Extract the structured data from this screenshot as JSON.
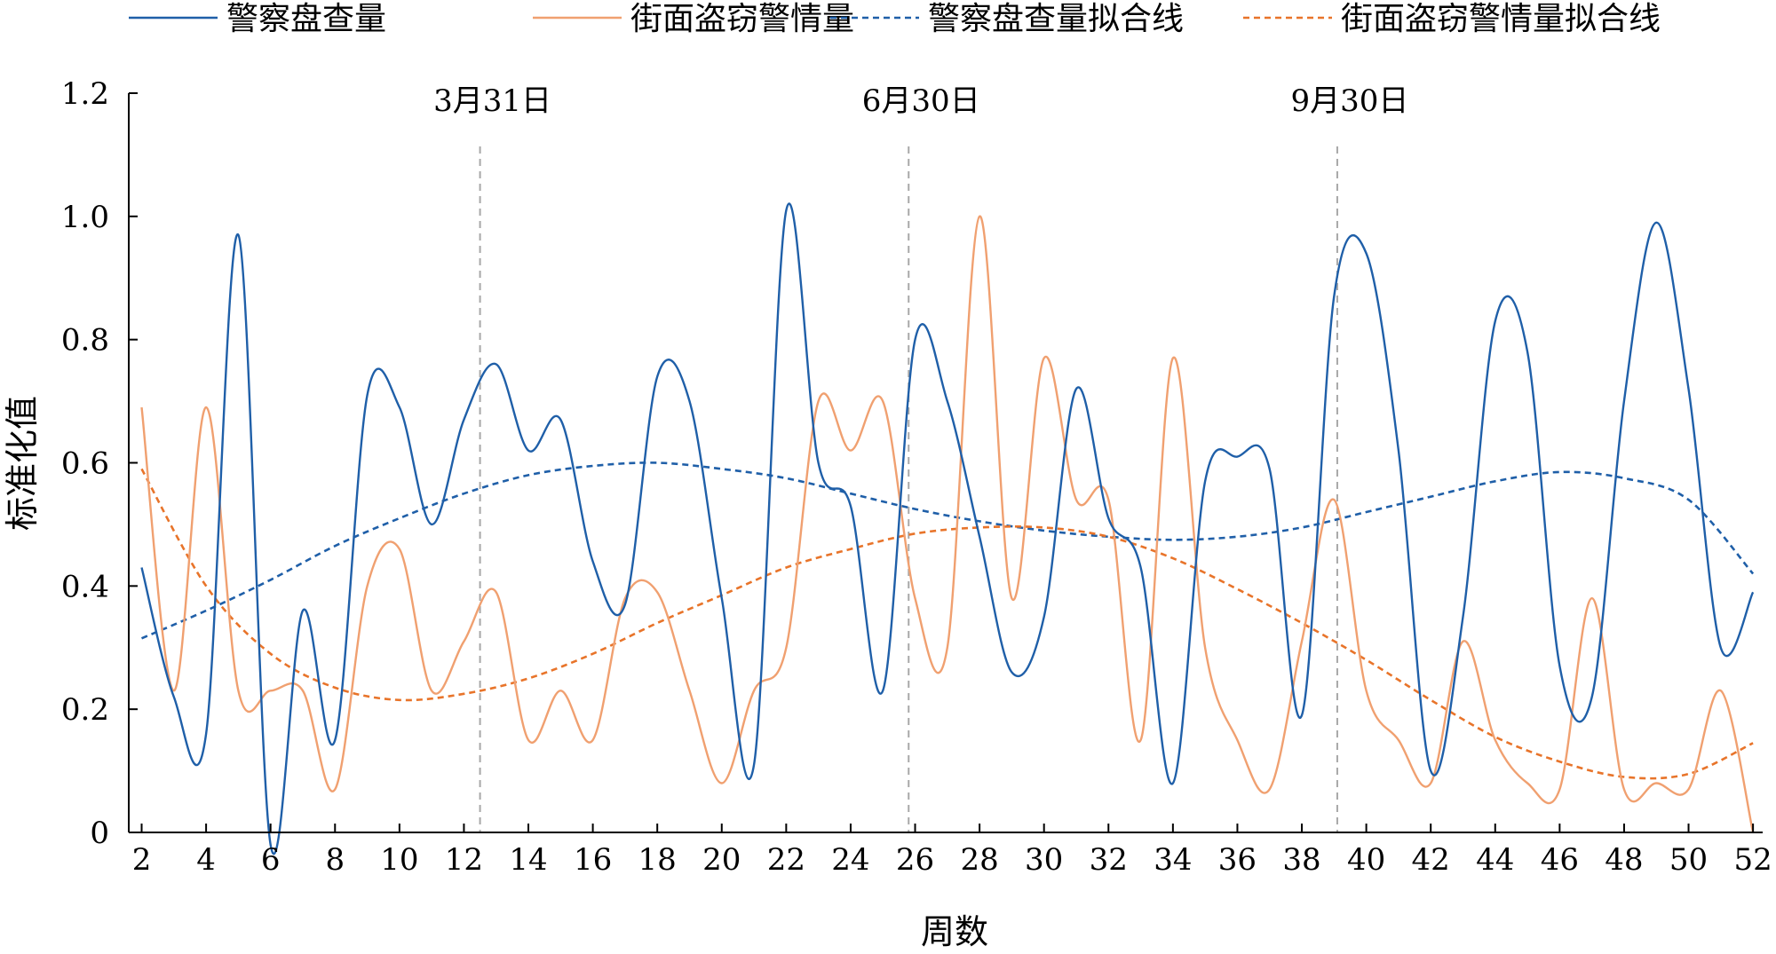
{
  "chart_data": {
    "type": "line",
    "title": "",
    "xlabel": "周数",
    "ylabel": "标准化值",
    "xlim": [
      1.6,
      52.3
    ],
    "ylim": [
      0,
      1.2
    ],
    "x_ticks": [
      2,
      4,
      6,
      8,
      10,
      12,
      14,
      16,
      18,
      20,
      22,
      24,
      26,
      28,
      30,
      32,
      34,
      36,
      38,
      40,
      42,
      44,
      46,
      48,
      50,
      52
    ],
    "y_ticks": [
      {
        "value": 0,
        "label": "0"
      },
      {
        "value": 0.2,
        "label": "0.2"
      },
      {
        "value": 0.4,
        "label": "0.4"
      },
      {
        "value": 0.6,
        "label": "0.6"
      },
      {
        "value": 0.8,
        "label": "0.8"
      },
      {
        "value": 1.0,
        "label": "1.0"
      },
      {
        "value": 1.2,
        "label": "1.2"
      }
    ],
    "legend_position": "top",
    "annotations": [
      {
        "x": 12.5,
        "label": "3月31日"
      },
      {
        "x": 25.8,
        "label": "6月30日"
      },
      {
        "x": 39.1,
        "label": "9月30日"
      }
    ],
    "series": [
      {
        "name": "警察盘查量",
        "color": "#1f5fa8",
        "style": "solid",
        "x": [
          2,
          3,
          4,
          5,
          6,
          7,
          8,
          9,
          10,
          11,
          12,
          13,
          14,
          15,
          16,
          17,
          18,
          19,
          20,
          21,
          22,
          23,
          24,
          25,
          26,
          27,
          28,
          29,
          30,
          31,
          32,
          33,
          34,
          35,
          36,
          37,
          38,
          39,
          40,
          41,
          42,
          43,
          44,
          45,
          46,
          47,
          48,
          49,
          50,
          51,
          52
        ],
        "values": [
          0.43,
          0.22,
          0.16,
          0.97,
          -0.02,
          0.36,
          0.15,
          0.71,
          0.69,
          0.5,
          0.67,
          0.76,
          0.62,
          0.67,
          0.44,
          0.37,
          0.74,
          0.7,
          0.38,
          0.11,
          1.01,
          0.6,
          0.53,
          0.23,
          0.8,
          0.7,
          0.48,
          0.26,
          0.35,
          0.72,
          0.51,
          0.43,
          0.08,
          0.57,
          0.61,
          0.59,
          0.19,
          0.87,
          0.94,
          0.62,
          0.1,
          0.35,
          0.83,
          0.78,
          0.27,
          0.22,
          0.7,
          0.99,
          0.72,
          0.3,
          0.39
        ]
      },
      {
        "name": "街面盗窃警情量",
        "color": "#f0a070",
        "style": "solid",
        "x": [
          2,
          3,
          4,
          5,
          6,
          7,
          8,
          9,
          10,
          11,
          12,
          13,
          14,
          15,
          16,
          17,
          18,
          19,
          20,
          21,
          22,
          23,
          24,
          25,
          26,
          27,
          28,
          29,
          30,
          31,
          32,
          33,
          34,
          35,
          36,
          37,
          38,
          39,
          40,
          41,
          42,
          43,
          44,
          45,
          46,
          47,
          48,
          49,
          50,
          51,
          52
        ],
        "values": [
          0.69,
          0.23,
          0.69,
          0.23,
          0.23,
          0.23,
          0.07,
          0.4,
          0.46,
          0.23,
          0.31,
          0.39,
          0.15,
          0.23,
          0.15,
          0.38,
          0.39,
          0.23,
          0.08,
          0.23,
          0.3,
          0.7,
          0.62,
          0.7,
          0.38,
          0.3,
          1.0,
          0.38,
          0.77,
          0.54,
          0.54,
          0.15,
          0.77,
          0.3,
          0.15,
          0.07,
          0.31,
          0.54,
          0.23,
          0.15,
          0.08,
          0.31,
          0.15,
          0.08,
          0.07,
          0.38,
          0.07,
          0.08,
          0.07,
          0.23,
          0.0
        ]
      },
      {
        "name": "警察盘查量拟合线",
        "color": "#1f5fa8",
        "style": "dashed",
        "x": [
          2,
          4,
          6,
          8,
          10,
          12,
          14,
          16,
          18,
          20,
          22,
          24,
          26,
          28,
          30,
          32,
          34,
          36,
          38,
          40,
          42,
          44,
          46,
          48,
          50,
          52
        ],
        "values": [
          0.315,
          0.36,
          0.41,
          0.465,
          0.51,
          0.55,
          0.58,
          0.595,
          0.6,
          0.59,
          0.575,
          0.55,
          0.525,
          0.505,
          0.49,
          0.48,
          0.475,
          0.48,
          0.495,
          0.52,
          0.545,
          0.57,
          0.585,
          0.575,
          0.54,
          0.42
        ]
      },
      {
        "name": "街面盗窃警情量拟合线",
        "color": "#e8742a",
        "style": "dashed",
        "x": [
          2,
          4,
          6,
          8,
          10,
          12,
          14,
          16,
          18,
          20,
          22,
          24,
          26,
          28,
          30,
          32,
          34,
          36,
          38,
          40,
          42,
          44,
          46,
          48,
          50,
          52
        ],
        "values": [
          0.59,
          0.4,
          0.29,
          0.235,
          0.215,
          0.225,
          0.25,
          0.29,
          0.34,
          0.385,
          0.43,
          0.46,
          0.485,
          0.495,
          0.495,
          0.48,
          0.445,
          0.395,
          0.34,
          0.28,
          0.215,
          0.155,
          0.115,
          0.09,
          0.095,
          0.145
        ]
      }
    ]
  }
}
